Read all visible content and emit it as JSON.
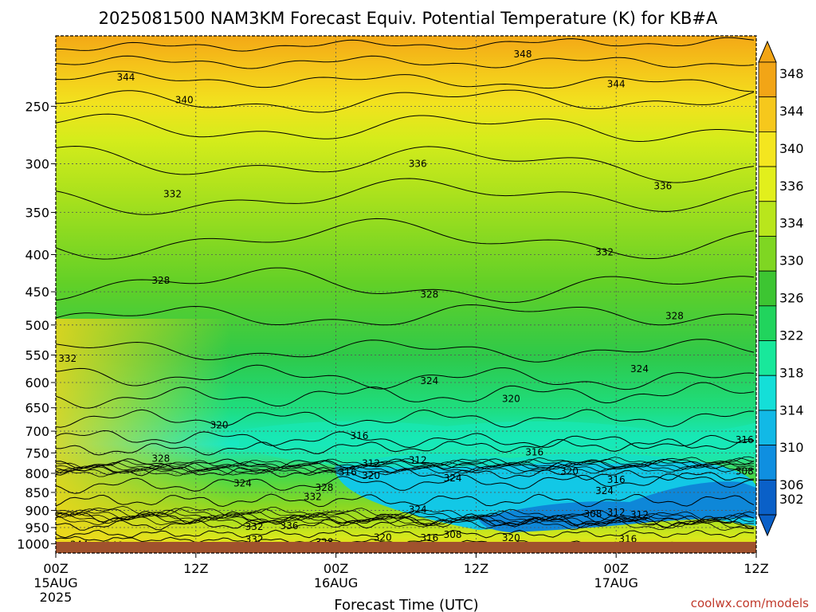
{
  "chart_data": {
    "type": "contour",
    "title": "2025081500 NAM3KM Forecast Equiv. Potential Temperature (K) for KB#A",
    "xlabel": "Forecast Time (UTC)",
    "ylabel": "",
    "x_ticks": [
      {
        "hour": 0,
        "label": "00Z",
        "date": "15AUG",
        "year": "2025"
      },
      {
        "hour": 12,
        "label": "12Z",
        "date": "",
        "year": ""
      },
      {
        "hour": 24,
        "label": "00Z",
        "date": "16AUG",
        "year": ""
      },
      {
        "hour": 36,
        "label": "12Z",
        "date": "",
        "year": ""
      },
      {
        "hour": 48,
        "label": "00Z",
        "date": "17AUG",
        "year": ""
      },
      {
        "hour": 60,
        "label": "12Z",
        "date": "",
        "year": ""
      }
    ],
    "xlim": [
      0,
      60
    ],
    "y_ticks": [
      "250",
      "300",
      "350",
      "400",
      "450",
      "500",
      "550",
      "600",
      "650",
      "700",
      "750",
      "800",
      "850",
      "900",
      "950",
      "1000"
    ],
    "y_tick_values": [
      250,
      300,
      350,
      400,
      450,
      500,
      550,
      600,
      650,
      700,
      750,
      800,
      850,
      900,
      950,
      1000
    ],
    "ylim": [
      1030,
      200
    ],
    "y_scale": "log",
    "colorbar": {
      "labels": [
        "348",
        "344",
        "340",
        "336",
        "334",
        "330",
        "326",
        "322",
        "318",
        "314",
        "310",
        "306",
        "302"
      ],
      "values": [
        348,
        344,
        340,
        336,
        334,
        330,
        326,
        322,
        318,
        314,
        310,
        306,
        302
      ],
      "colors": [
        "#f2a516",
        "#f6c81c",
        "#f4e61f",
        "#e2ef1c",
        "#b9e61c",
        "#7fd622",
        "#3dc532",
        "#21d45d",
        "#18e89b",
        "#14dfd8",
        "#12b9e6",
        "#0f8fe0",
        "#0a60c8"
      ]
    },
    "contour_labels": [
      {
        "text": "348",
        "hour": 40,
        "p": 212
      },
      {
        "text": "344",
        "hour": 6,
        "p": 228
      },
      {
        "text": "344",
        "hour": 48,
        "p": 233
      },
      {
        "text": "340",
        "hour": 11,
        "p": 245
      },
      {
        "text": "336",
        "hour": 31,
        "p": 300
      },
      {
        "text": "336",
        "hour": 52,
        "p": 322
      },
      {
        "text": "332",
        "hour": 10,
        "p": 330
      },
      {
        "text": "332",
        "hour": 47,
        "p": 397
      },
      {
        "text": "328",
        "hour": 9,
        "p": 434
      },
      {
        "text": "328",
        "hour": 32,
        "p": 454
      },
      {
        "text": "328",
        "hour": 53,
        "p": 486
      },
      {
        "text": "332",
        "hour": 1,
        "p": 556
      },
      {
        "text": "324",
        "hour": 50,
        "p": 575
      },
      {
        "text": "324",
        "hour": 32,
        "p": 597
      },
      {
        "text": "320",
        "hour": 39,
        "p": 632
      },
      {
        "text": "320",
        "hour": 14,
        "p": 687
      },
      {
        "text": "316",
        "hour": 26,
        "p": 711
      },
      {
        "text": "316",
        "hour": 41,
        "p": 748
      },
      {
        "text": "316",
        "hour": 59,
        "p": 720
      },
      {
        "text": "328",
        "hour": 9,
        "p": 764
      },
      {
        "text": "312",
        "hour": 27,
        "p": 775
      },
      {
        "text": "312",
        "hour": 31,
        "p": 767
      },
      {
        "text": "316",
        "hour": 25,
        "p": 797
      },
      {
        "text": "320",
        "hour": 27,
        "p": 806
      },
      {
        "text": "320",
        "hour": 44,
        "p": 795
      },
      {
        "text": "308",
        "hour": 59,
        "p": 795
      },
      {
        "text": "324",
        "hour": 16,
        "p": 826
      },
      {
        "text": "324",
        "hour": 34,
        "p": 812
      },
      {
        "text": "316",
        "hour": 48,
        "p": 816
      },
      {
        "text": "328",
        "hour": 23,
        "p": 837
      },
      {
        "text": "324",
        "hour": 47,
        "p": 846
      },
      {
        "text": "332",
        "hour": 22,
        "p": 862
      },
      {
        "text": "324",
        "hour": 31,
        "p": 897
      },
      {
        "text": "308",
        "hour": 46,
        "p": 910
      },
      {
        "text": "312",
        "hour": 48,
        "p": 905
      },
      {
        "text": "312",
        "hour": 50,
        "p": 912
      },
      {
        "text": "332",
        "hour": 17,
        "p": 948
      },
      {
        "text": "336",
        "hour": 20,
        "p": 945
      },
      {
        "text": "320",
        "hour": 28,
        "p": 980
      },
      {
        "text": "316",
        "hour": 32,
        "p": 982
      },
      {
        "text": "308",
        "hour": 34,
        "p": 972
      },
      {
        "text": "320",
        "hour": 39,
        "p": 982
      },
      {
        "text": "316",
        "hour": 49,
        "p": 985
      },
      {
        "text": "332",
        "hour": 17,
        "p": 987
      },
      {
        "text": "328",
        "hour": 23,
        "p": 995
      },
      {
        "text": "344",
        "hour": 2,
        "p": 1003
      },
      {
        "text": "340",
        "hour": 5,
        "p": 1006
      }
    ],
    "grid": true,
    "legend": "right"
  },
  "credit": "coolwx.com/models"
}
